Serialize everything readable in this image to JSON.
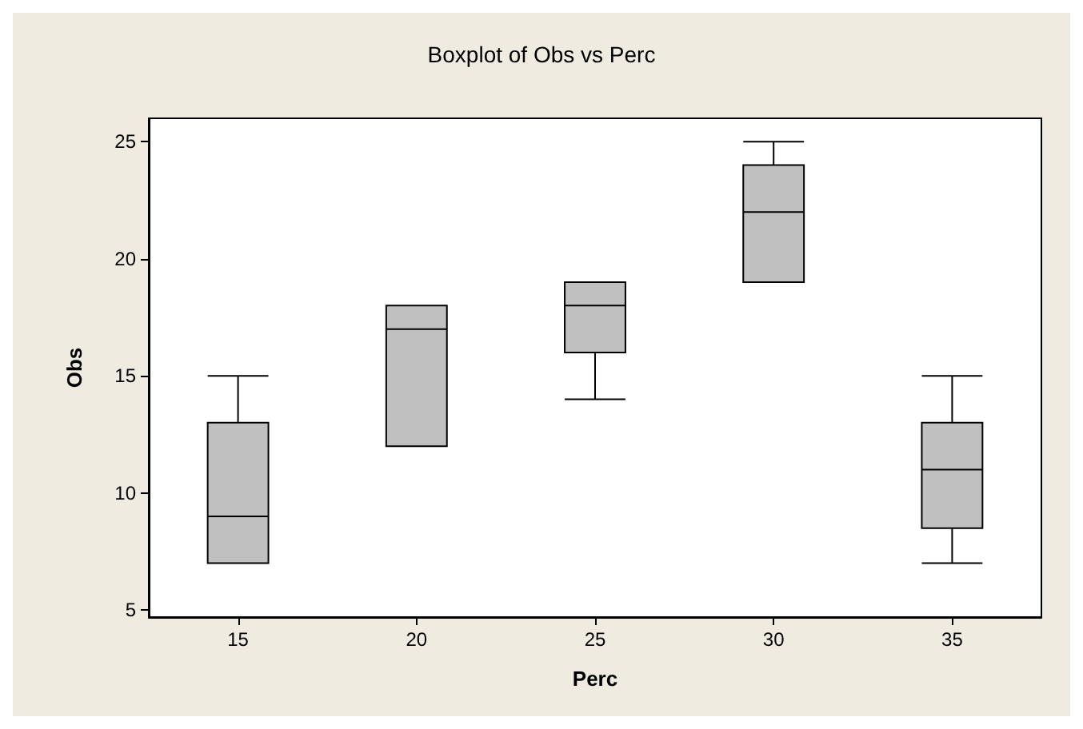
{
  "chart_data": {
    "type": "box",
    "title": "Boxplot of Obs vs Perc",
    "xlabel": "Perc",
    "ylabel": "Obs",
    "categories": [
      "15",
      "20",
      "25",
      "30",
      "35"
    ],
    "color": "#c0c0c0",
    "boxes": [
      {
        "low": 7,
        "q1": 7,
        "median": 9,
        "q3": 13,
        "high": 15
      },
      {
        "low": 12,
        "q1": 12,
        "median": 17,
        "q3": 18,
        "high": 18
      },
      {
        "low": 14,
        "q1": 16,
        "median": 18,
        "q3": 19,
        "high": 19
      },
      {
        "low": 19,
        "q1": 19,
        "median": 22,
        "q3": 24,
        "high": 25
      },
      {
        "low": 7,
        "q1": 8.5,
        "median": 11,
        "q3": 13,
        "high": 15
      }
    ],
    "ylim": [
      4.7,
      26
    ],
    "yticks": [
      5,
      10,
      15,
      20,
      25
    ]
  }
}
